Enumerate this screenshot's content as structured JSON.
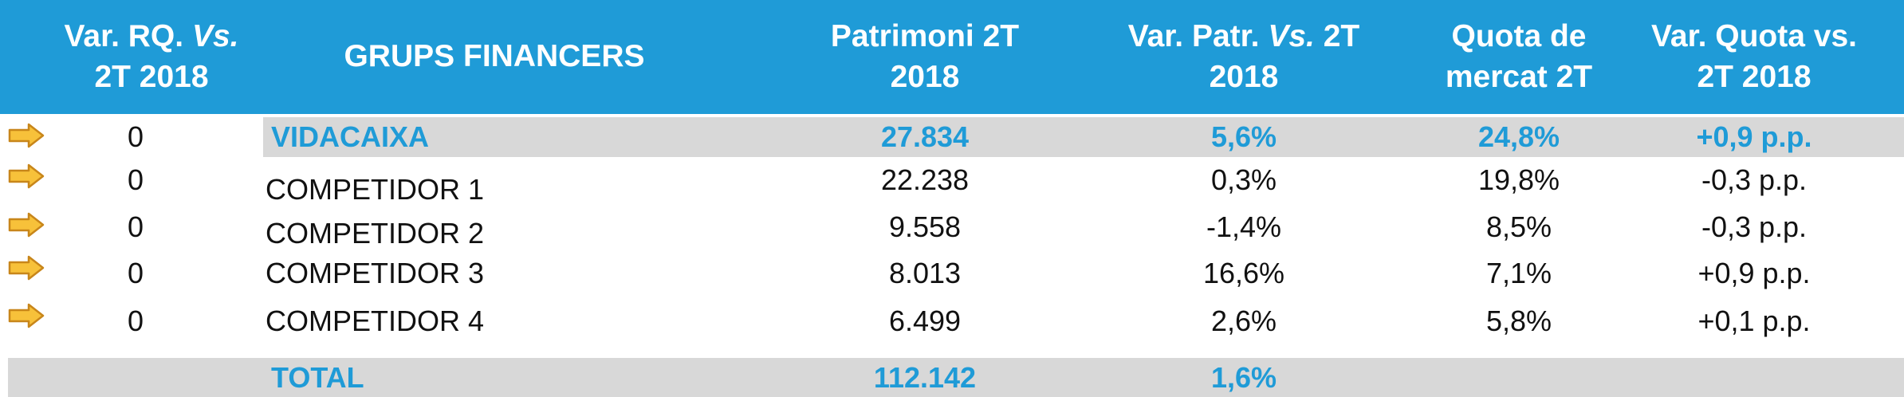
{
  "colors": {
    "header_bg": "#1f9bd7",
    "highlight_row_bg": "#d8d8d8",
    "highlight_text": "#1f9bd7",
    "arrow_fill": "#f7c13a",
    "arrow_stroke": "#c8861a"
  },
  "header": {
    "col1_line1": "Var. RQ. ",
    "col1_italic": "Vs.",
    "col1_line2": "2T 2018",
    "col2": "GRUPS FINANCERS",
    "col3_line1": "Patrimoni 2T",
    "col3_line2": "2018",
    "col4_line1": "Var. Patr. ",
    "col4_italic": "Vs.",
    "col4_after": " 2T",
    "col4_line2": "2018",
    "col5_line1": "Quota de",
    "col5_line2": "mercat 2T",
    "col6_line1": "Var. Quota vs.",
    "col6_line2": "2T 2018"
  },
  "rows": [
    {
      "icon": "arrow-right-icon",
      "var_rq": "0",
      "group": "VIDACAIXA",
      "patrimoni": "27.834",
      "var_patr": "5,6%",
      "quota": "24,8%",
      "var_quota": "+0,9 p.p."
    },
    {
      "icon": "arrow-right-icon",
      "var_rq": "0",
      "group": "COMPETIDOR 1",
      "patrimoni": "22.238",
      "var_patr": "0,3%",
      "quota": "19,8%",
      "var_quota": "-0,3 p.p."
    },
    {
      "icon": "arrow-right-icon",
      "var_rq": "0",
      "group": "COMPETIDOR 2",
      "patrimoni": "9.558",
      "var_patr": "-1,4%",
      "quota": "8,5%",
      "var_quota": "-0,3 p.p."
    },
    {
      "icon": "arrow-right-icon",
      "var_rq": "0",
      "group": "COMPETIDOR 3",
      "patrimoni": "8.013",
      "var_patr": "16,6%",
      "quota": "7,1%",
      "var_quota": "+0,9 p.p."
    },
    {
      "icon": "arrow-right-icon",
      "var_rq": "0",
      "group": "COMPETIDOR 4",
      "patrimoni": "6.499",
      "var_patr": "2,6%",
      "quota": "5,8%",
      "var_quota": "+0,1 p.p."
    }
  ],
  "total": {
    "label": "TOTAL",
    "patrimoni": "112.142",
    "var_patr": "1,6%"
  }
}
